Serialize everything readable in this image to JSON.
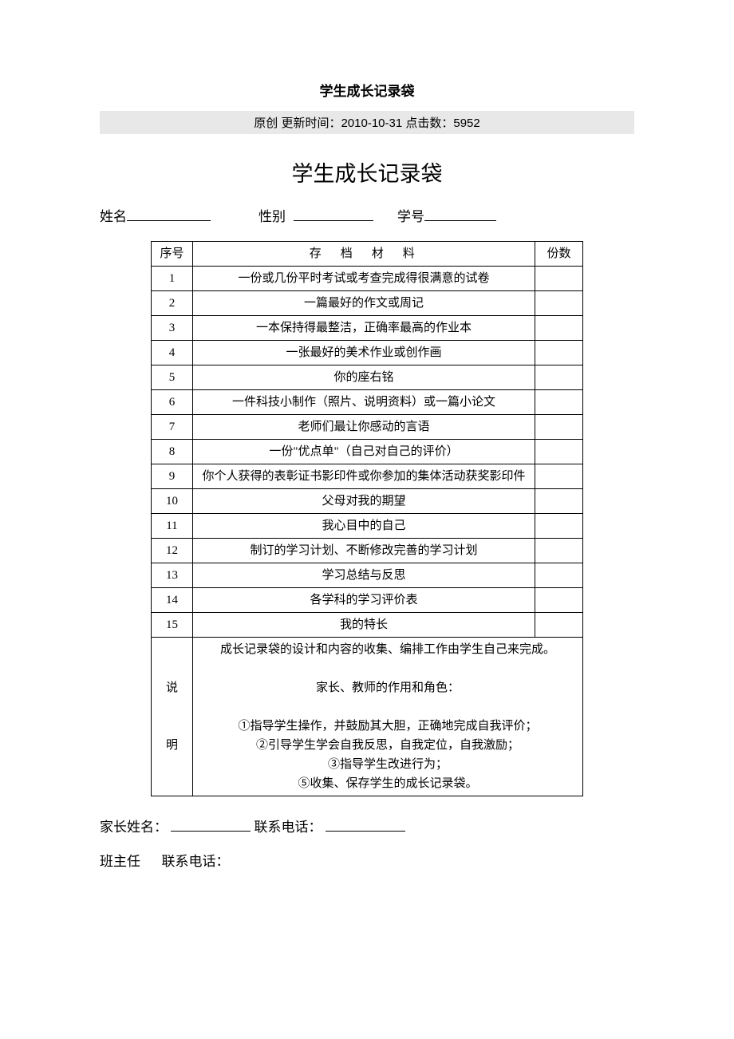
{
  "doc_title": "学生成长记录袋",
  "meta_bar": "原创  更新时间：2010-10-31  点击数：5952",
  "main_title": "学生成长记录袋",
  "info_labels": {
    "name": "姓名",
    "sex": "性别",
    "id": "学号"
  },
  "table": {
    "header": {
      "num": "序号",
      "desc": "存　档　材　料",
      "qty": "份数"
    },
    "rows": [
      {
        "num": "1",
        "desc": "一份或几份平时考试或考查完成得很满意的试卷"
      },
      {
        "num": "2",
        "desc": "一篇最好的作文或周记"
      },
      {
        "num": "3",
        "desc": "一本保持得最整洁，正确率最高的作业本"
      },
      {
        "num": "4",
        "desc": "一张最好的美术作业或创作画"
      },
      {
        "num": "5",
        "desc": "你的座右铭"
      },
      {
        "num": "6",
        "desc": "一件科技小制作（照片、说明资料）或一篇小论文"
      },
      {
        "num": "7",
        "desc": "老师们最让你感动的言语"
      },
      {
        "num": "8",
        "desc": "一份\"优点单\"（自己对自己的评价）"
      },
      {
        "num": "9",
        "desc": "你个人获得的表彰证书影印件或你参加的集体活动获奖影印件"
      },
      {
        "num": "10",
        "desc": "父母对我的期望"
      },
      {
        "num": "11",
        "desc": "我心目中的自己"
      },
      {
        "num": "12",
        "desc": "制订的学习计划、不断修改完善的学习计划"
      },
      {
        "num": "13",
        "desc": "学习总结与反思"
      },
      {
        "num": "14",
        "desc": "各学科的学习评价表"
      },
      {
        "num": "15",
        "desc": "我的特长"
      }
    ],
    "notes_label_top": "说",
    "notes_label_bottom": "明",
    "notes_lines": [
      "成长记录袋的设计和内容的收集、编排工作由学生自己来完成。",
      "",
      "家长、教师的作用和角色：",
      "",
      "①指导学生操作，并鼓励其大胆，正确地完成自我评价；",
      "②引导学生学会自我反思，自我定位，自我激励；",
      "③指导学生改进行为；",
      "⑤收集、保存学生的成长记录袋。"
    ]
  },
  "footer": {
    "parent_name_label": "家长姓名：",
    "phone_label": "联系电话：",
    "teacher_label": "班主任",
    "teacher_phone_label": "联系电话："
  },
  "colors": {
    "background": "#ffffff",
    "meta_bg": "#e8e8e8",
    "text": "#000000",
    "border": "#000000"
  }
}
